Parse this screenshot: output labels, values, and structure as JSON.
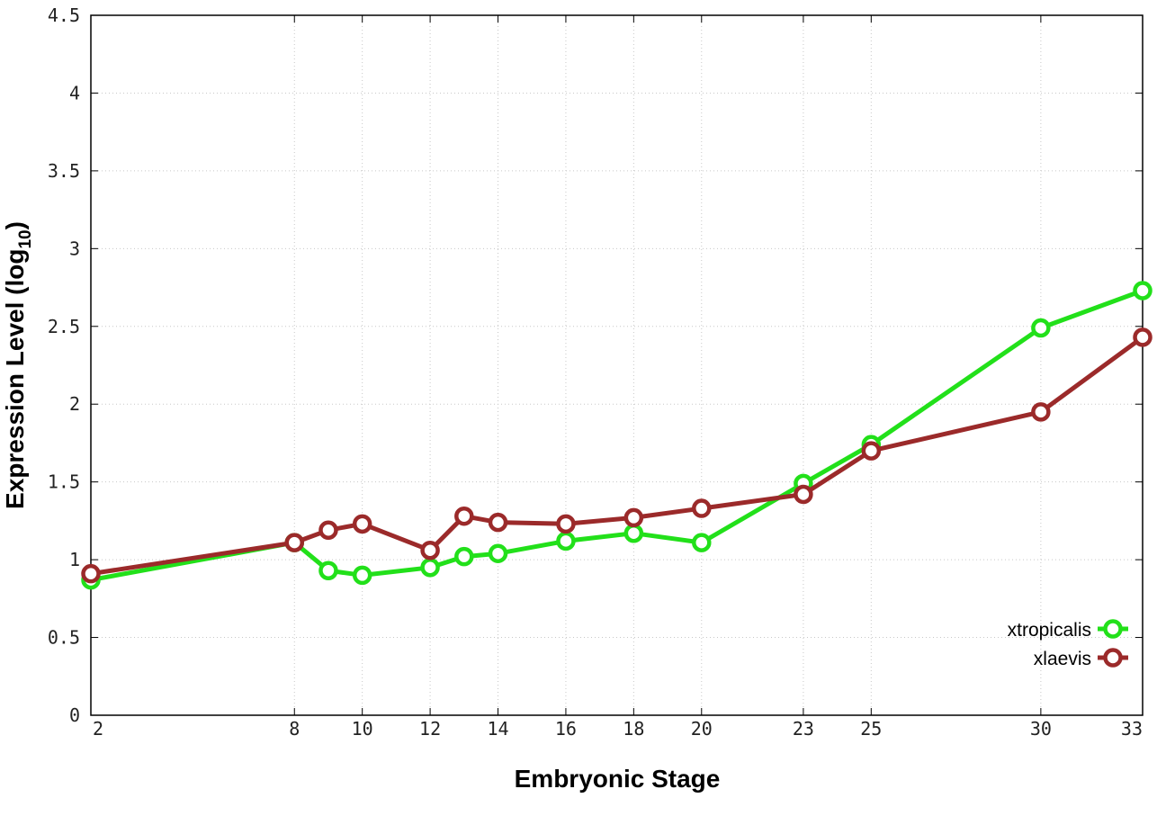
{
  "chart_data": {
    "type": "line",
    "xlabel": "Embryonic Stage",
    "ylabel": "Expression Level (log",
    "ylabel_sub": "10",
    "ylabel_end": ")",
    "x": [
      2,
      8,
      9,
      10,
      12,
      13,
      14,
      16,
      18,
      20,
      23,
      25,
      30,
      33
    ],
    "x_tick_labels": [
      "2",
      "8",
      "10",
      "12",
      "14",
      "16",
      "18",
      "20",
      "23",
      "25",
      "30",
      "33"
    ],
    "x_ticks": [
      2,
      8,
      10,
      12,
      14,
      16,
      18,
      20,
      23,
      25,
      30,
      33
    ],
    "y_ticks": [
      0,
      0.5,
      1,
      1.5,
      2,
      2.5,
      3,
      3.5,
      4,
      4.5
    ],
    "y_tick_labels": [
      "0",
      "0.5",
      "1",
      "1.5",
      "2",
      "2.5",
      "3",
      "3.5",
      "4",
      "4.5"
    ],
    "xlim": [
      2,
      33
    ],
    "ylim": [
      0,
      4.5
    ],
    "grid": true,
    "legend_position": "bottom-right",
    "series": [
      {
        "name": "xtropicalis",
        "color": "#22e01a",
        "values": [
          0.87,
          1.11,
          0.93,
          0.9,
          0.95,
          1.02,
          1.04,
          1.12,
          1.17,
          1.11,
          1.49,
          1.74,
          2.49,
          2.73
        ]
      },
      {
        "name": "xlaevis",
        "color": "#9b2a2a",
        "values": [
          0.91,
          1.11,
          1.19,
          1.23,
          1.06,
          1.28,
          1.24,
          1.23,
          1.27,
          1.33,
          1.42,
          1.7,
          1.95,
          2.43
        ]
      }
    ]
  }
}
